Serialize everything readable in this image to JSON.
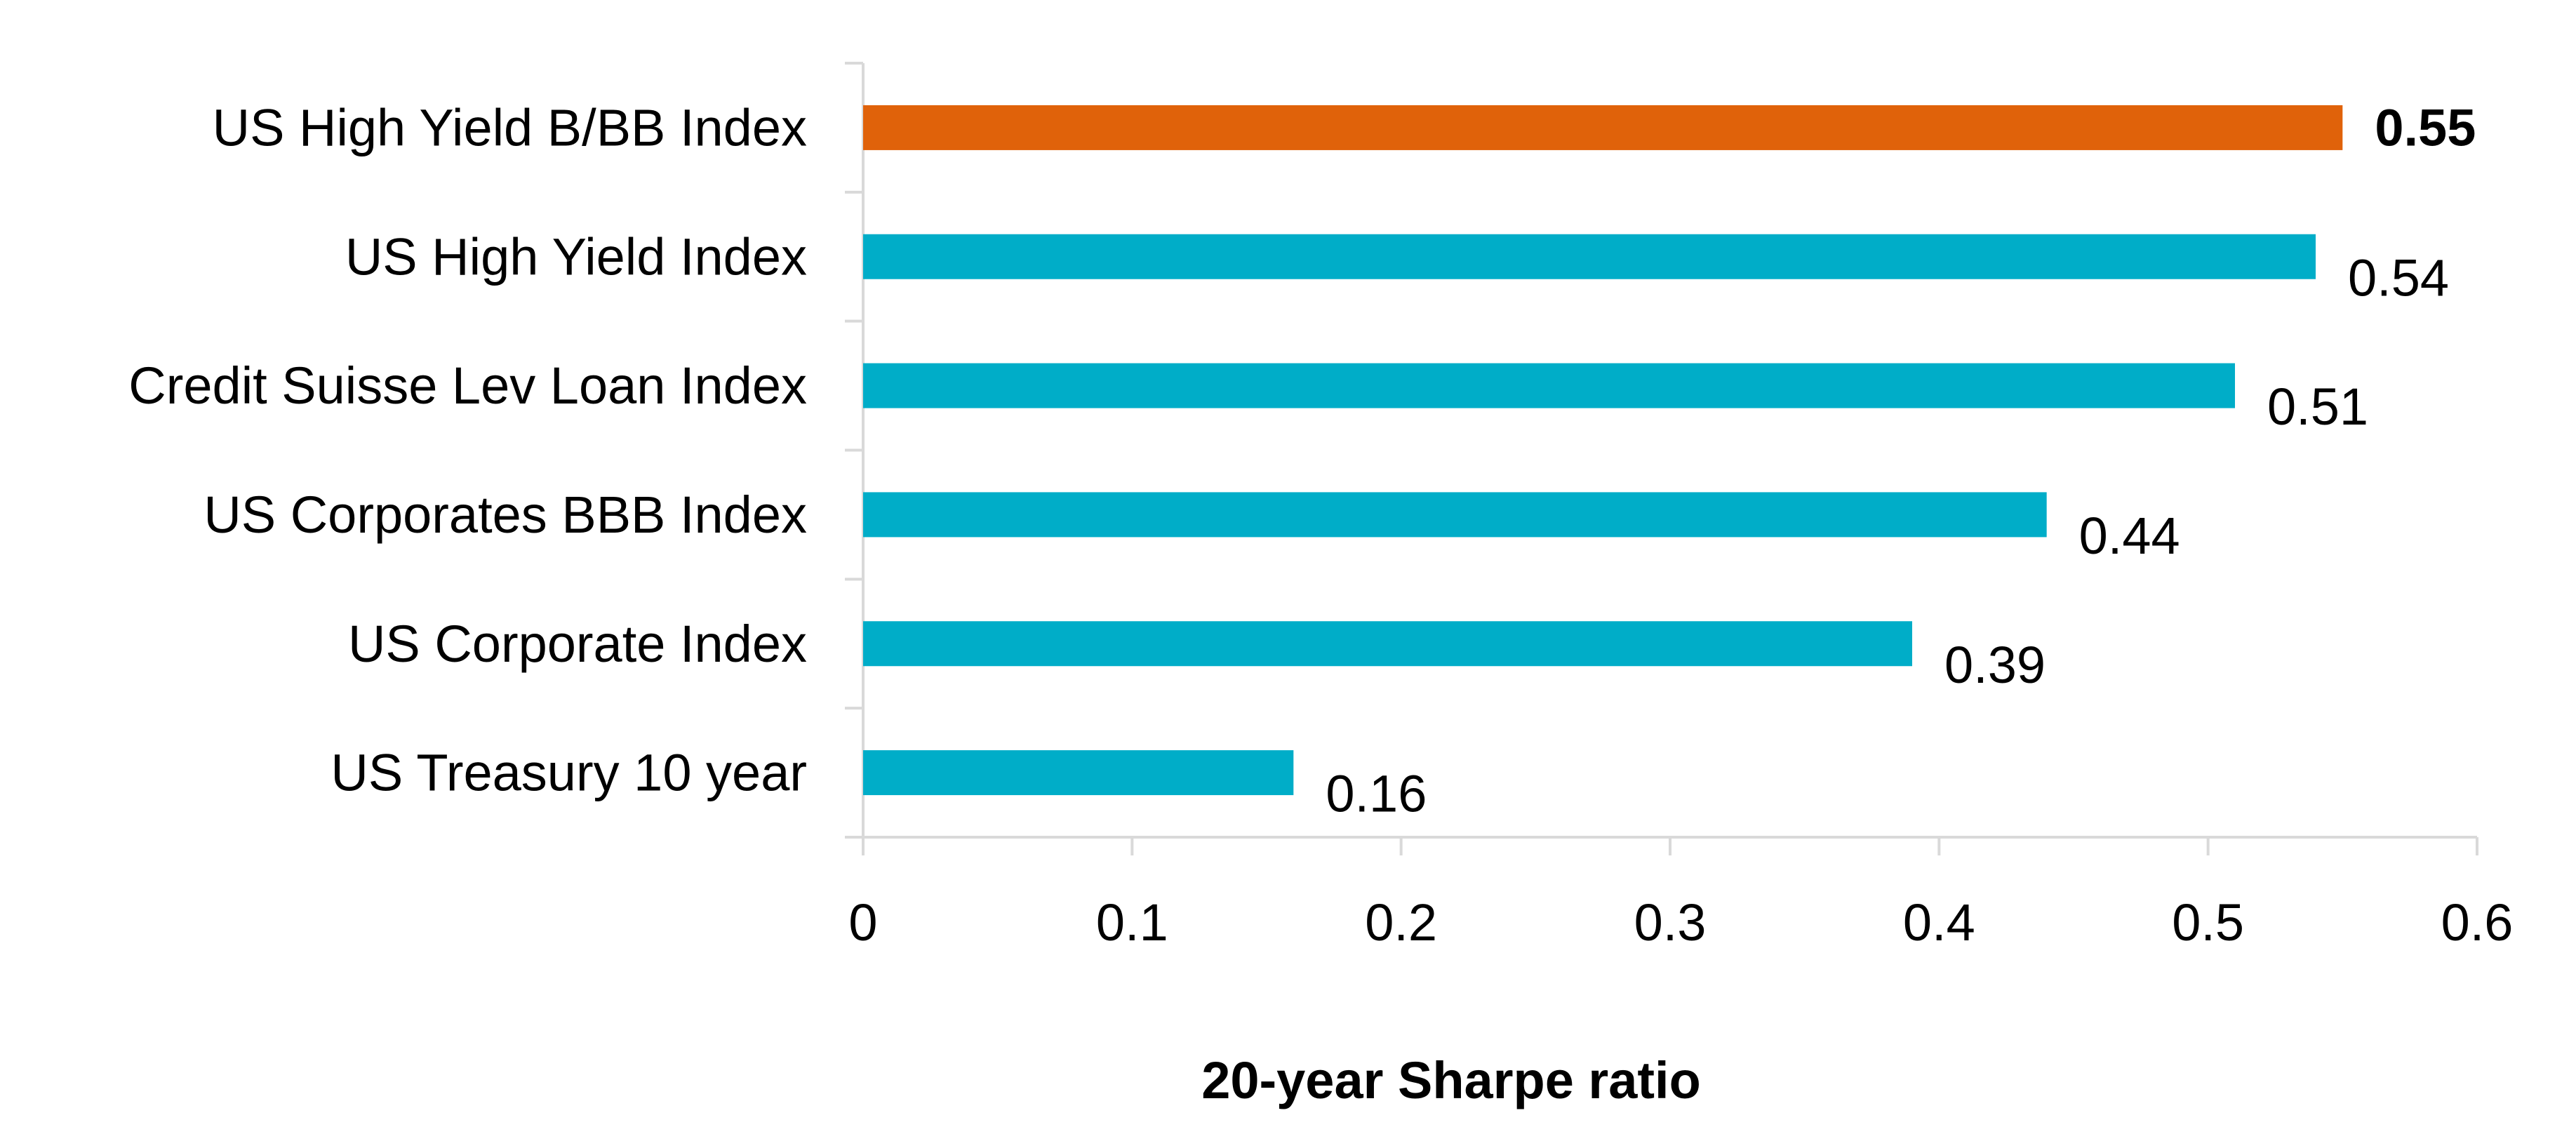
{
  "chart_data": {
    "type": "bar",
    "orientation": "horizontal",
    "categories": [
      "US High Yield B/BB Index",
      "US High Yield Index",
      "Credit Suisse Lev Loan Index",
      "US Corporates BBB Index",
      "US Corporate Index",
      "US Treasury 10 year"
    ],
    "values": [
      0.55,
      0.54,
      0.51,
      0.44,
      0.39,
      0.16
    ],
    "value_labels": [
      "0.55",
      "0.54",
      "0.51",
      "0.44",
      "0.39",
      "0.16"
    ],
    "highlight_index": 0,
    "xlabel": "20-year Sharpe ratio",
    "xlim": [
      0,
      0.6
    ],
    "x_ticks": [
      0,
      0.1,
      0.2,
      0.3,
      0.4,
      0.5,
      0.6
    ],
    "x_tick_labels": [
      "0",
      "0.1",
      "0.2",
      "0.3",
      "0.4",
      "0.5",
      "0.6"
    ],
    "grid": false,
    "legend": "none",
    "colors": {
      "bar": "#00ADC8",
      "highlight_bar": "#E0620A",
      "highlight_text": "#E0620A",
      "axis": "#D9D9D9",
      "text": "#000000"
    }
  }
}
